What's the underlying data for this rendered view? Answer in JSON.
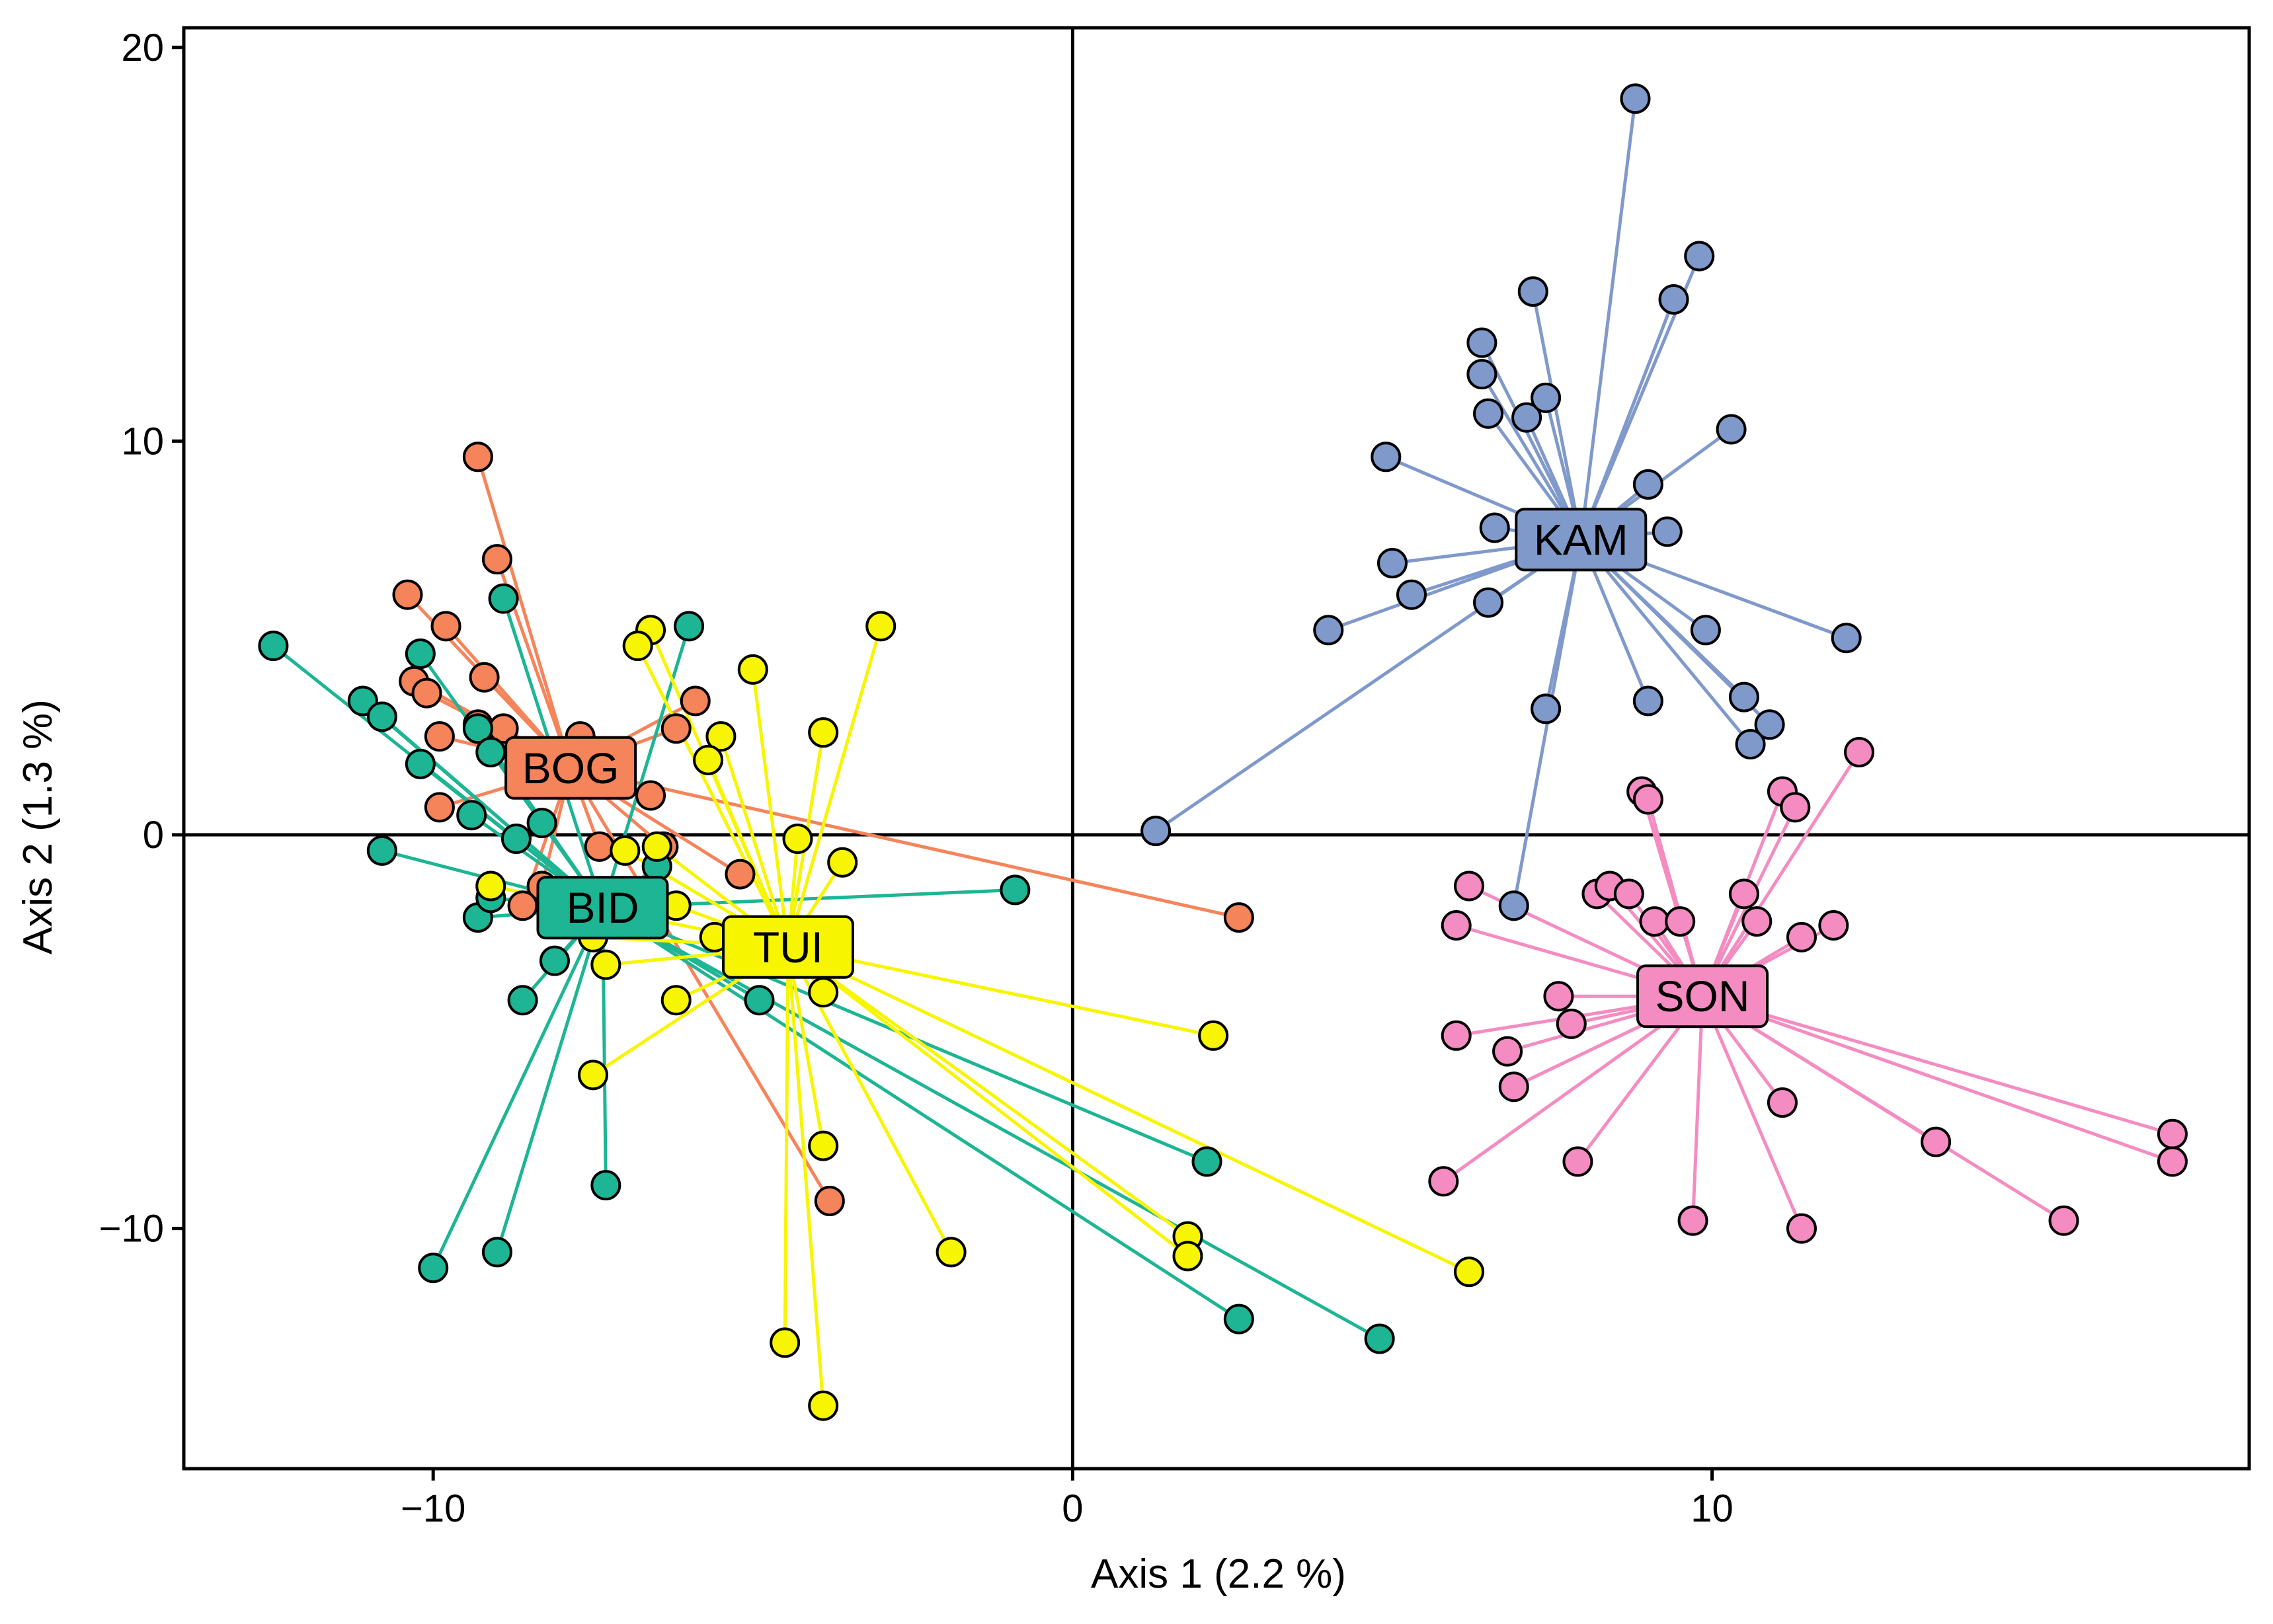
{
  "chart_data": {
    "type": "scatter",
    "title": "",
    "xlabel": "Axis 1 (2.2 %)",
    "ylabel": "Axis 2 (1.3 %)",
    "xlim": [
      -13.9,
      18.4
    ],
    "ylim": [
      -16.1,
      20.5
    ],
    "xticks": [
      -10,
      0,
      10
    ],
    "yticks": [
      -10,
      0,
      10,
      20
    ],
    "xtick_labels": [
      "−10",
      "0",
      "10"
    ],
    "ytick_labels": [
      "−10",
      "0",
      "10",
      "20"
    ],
    "reference_lines": {
      "x": 0,
      "y": 0
    },
    "grid": false,
    "series": [
      {
        "name": "BOG",
        "color": "#F5845A",
        "centroid": [
          -7.85,
          1.7
        ],
        "points": [
          [
            -9.3,
            9.6
          ],
          [
            -9.0,
            7.0
          ],
          [
            -10.4,
            6.1
          ],
          [
            -9.8,
            5.3
          ],
          [
            -9.2,
            4.0
          ],
          [
            -10.3,
            3.9
          ],
          [
            -10.1,
            3.6
          ],
          [
            -9.3,
            2.8
          ],
          [
            -8.9,
            2.7
          ],
          [
            -9.9,
            2.5
          ],
          [
            -7.7,
            2.5
          ],
          [
            -9.9,
            0.7
          ],
          [
            -6.6,
            1.0
          ],
          [
            -7.4,
            -0.3
          ],
          [
            -8.3,
            -1.3
          ],
          [
            -8.6,
            -1.8
          ],
          [
            -6.2,
            2.7
          ],
          [
            -5.9,
            3.4
          ],
          [
            -5.2,
            -1.0
          ],
          [
            -6.4,
            -0.3
          ],
          [
            2.6,
            -2.1
          ],
          [
            -3.8,
            -9.3
          ]
        ]
      },
      {
        "name": "BID",
        "color": "#1DB594",
        "centroid": [
          -7.35,
          -1.85
        ],
        "points": [
          [
            -12.5,
            4.8
          ],
          [
            -11.1,
            3.4
          ],
          [
            -10.8,
            3.0
          ],
          [
            -10.2,
            4.6
          ],
          [
            -8.9,
            6.0
          ],
          [
            -10.2,
            1.8
          ],
          [
            -9.3,
            2.7
          ],
          [
            -9.1,
            2.1
          ],
          [
            -9.4,
            0.5
          ],
          [
            -8.7,
            -0.1
          ],
          [
            -8.3,
            0.3
          ],
          [
            -10.8,
            -0.4
          ],
          [
            -9.3,
            -2.1
          ],
          [
            -9.1,
            -1.6
          ],
          [
            -8.1,
            -3.2
          ],
          [
            -8.6,
            -4.2
          ],
          [
            -7.3,
            -8.9
          ],
          [
            -9.0,
            -10.6
          ],
          [
            -10.0,
            -11.0
          ],
          [
            -6.5,
            -0.8
          ],
          [
            -6.0,
            5.3
          ],
          [
            -0.9,
            -1.4
          ],
          [
            -4.9,
            -4.2
          ],
          [
            2.1,
            -8.3
          ],
          [
            2.6,
            -12.3
          ],
          [
            4.8,
            -12.8
          ]
        ]
      },
      {
        "name": "TUI",
        "color": "#F7F500",
        "centroid": [
          -4.45,
          -2.85
        ],
        "points": [
          [
            -3.0,
            5.3
          ],
          [
            -6.6,
            5.2
          ],
          [
            -6.8,
            4.8
          ],
          [
            -5.0,
            4.2
          ],
          [
            -3.9,
            2.6
          ],
          [
            -5.5,
            2.5
          ],
          [
            -5.7,
            1.9
          ],
          [
            -4.3,
            -0.1
          ],
          [
            -3.6,
            -0.7
          ],
          [
            -6.5,
            -0.3
          ],
          [
            -7.0,
            -0.4
          ],
          [
            -9.1,
            -1.3
          ],
          [
            -7.3,
            -3.3
          ],
          [
            -7.5,
            -2.6
          ],
          [
            -6.2,
            -1.8
          ],
          [
            -5.6,
            -2.6
          ],
          [
            -6.2,
            -4.2
          ],
          [
            -7.5,
            -6.1
          ],
          [
            -3.9,
            -4.0
          ],
          [
            -3.9,
            -7.9
          ],
          [
            -1.9,
            -10.6
          ],
          [
            -4.5,
            -12.9
          ],
          [
            -3.9,
            -14.5
          ],
          [
            2.2,
            -5.1
          ],
          [
            1.8,
            -10.2
          ],
          [
            1.8,
            -10.7
          ],
          [
            6.2,
            -11.1
          ]
        ]
      },
      {
        "name": "KAM",
        "color": "#8099CB",
        "centroid": [
          7.95,
          7.5
        ],
        "points": [
          [
            8.8,
            18.7
          ],
          [
            9.8,
            14.7
          ],
          [
            9.4,
            13.6
          ],
          [
            7.2,
            13.8
          ],
          [
            6.4,
            12.5
          ],
          [
            6.4,
            11.7
          ],
          [
            6.5,
            10.7
          ],
          [
            7.1,
            10.6
          ],
          [
            7.4,
            11.1
          ],
          [
            10.3,
            10.3
          ],
          [
            4.9,
            9.6
          ],
          [
            9.0,
            8.9
          ],
          [
            6.6,
            7.8
          ],
          [
            9.3,
            7.7
          ],
          [
            5.0,
            6.9
          ],
          [
            5.3,
            6.1
          ],
          [
            6.5,
            5.9
          ],
          [
            4.0,
            5.2
          ],
          [
            9.9,
            5.2
          ],
          [
            12.1,
            5.0
          ],
          [
            7.4,
            3.2
          ],
          [
            9.0,
            3.4
          ],
          [
            10.5,
            3.5
          ],
          [
            10.9,
            2.8
          ],
          [
            10.6,
            2.3
          ],
          [
            1.3,
            0.1
          ],
          [
            6.9,
            -1.8
          ]
        ]
      },
      {
        "name": "SON",
        "color": "#F48CC2",
        "centroid": [
          9.85,
          -4.1
        ],
        "points": [
          [
            12.3,
            2.1
          ],
          [
            8.9,
            1.1
          ],
          [
            9.0,
            0.9
          ],
          [
            11.1,
            1.1
          ],
          [
            11.3,
            0.7
          ],
          [
            6.2,
            -1.3
          ],
          [
            8.2,
            -1.5
          ],
          [
            8.4,
            -1.3
          ],
          [
            8.7,
            -1.5
          ],
          [
            9.1,
            -2.2
          ],
          [
            9.5,
            -2.2
          ],
          [
            10.5,
            -1.5
          ],
          [
            10.7,
            -2.2
          ],
          [
            11.4,
            -2.6
          ],
          [
            11.9,
            -2.3
          ],
          [
            6.0,
            -2.3
          ],
          [
            7.6,
            -4.1
          ],
          [
            7.8,
            -4.8
          ],
          [
            6.0,
            -5.1
          ],
          [
            6.8,
            -5.5
          ],
          [
            6.9,
            -6.4
          ],
          [
            7.9,
            -8.3
          ],
          [
            5.8,
            -8.8
          ],
          [
            9.7,
            -9.8
          ],
          [
            11.1,
            -6.8
          ],
          [
            11.4,
            -10.0
          ],
          [
            13.5,
            -7.8
          ],
          [
            15.5,
            -9.8
          ],
          [
            17.2,
            -7.6
          ],
          [
            17.2,
            -8.3
          ]
        ]
      }
    ]
  }
}
